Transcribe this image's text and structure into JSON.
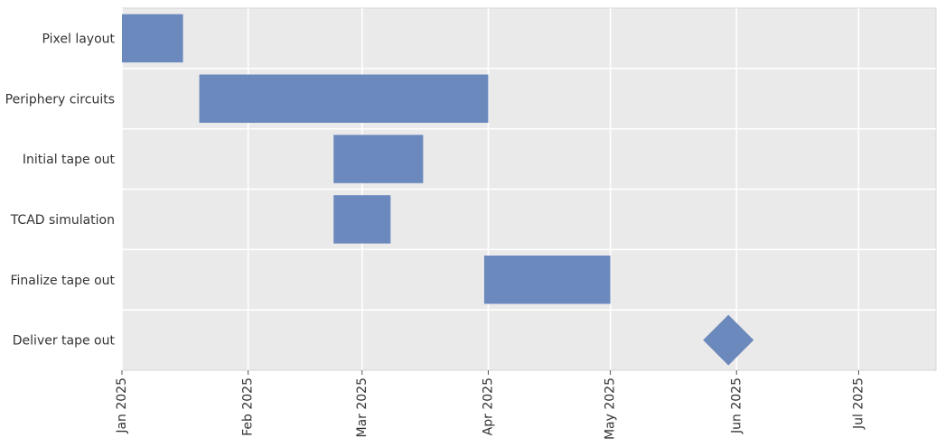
{
  "chart_data": {
    "type": "gantt",
    "title": "",
    "xlabel": "",
    "ylabel": "",
    "x_axis": "date",
    "xlim": [
      "2025-01-01",
      "2025-07-20"
    ],
    "x_ticks": [
      "2025-01-01",
      "2025-02-01",
      "2025-03-01",
      "2025-04-01",
      "2025-05-01",
      "2025-06-01",
      "2025-07-01"
    ],
    "x_tick_labels": [
      "Jan 2025",
      "Feb 2025",
      "Mar 2025",
      "Apr 2025",
      "May 2025",
      "Jun 2025",
      "Jul 2025"
    ],
    "grid": true,
    "tasks": [
      {
        "label": "Pixel layout",
        "start": "2025-01-01",
        "end": "2025-01-15",
        "kind": "bar"
      },
      {
        "label": "Periphery circuits",
        "start": "2025-01-20",
        "end": "2025-03-31",
        "kind": "bar"
      },
      {
        "label": "Initial tape out",
        "start": "2025-02-22",
        "end": "2025-03-15",
        "kind": "bar"
      },
      {
        "label": "TCAD simulation",
        "start": "2025-02-22",
        "end": "2025-03-07",
        "kind": "bar"
      },
      {
        "label": "Finalize tape out",
        "start": "2025-03-31",
        "end": "2025-04-30",
        "kind": "bar"
      },
      {
        "label": "Deliver tape out",
        "start": "2025-05-30",
        "end": "2025-05-30",
        "kind": "milestone"
      }
    ],
    "colors": {
      "bar": "#6b89bd",
      "background": "#eaeaea",
      "grid": "#ffffff",
      "text": "#333333"
    }
  }
}
